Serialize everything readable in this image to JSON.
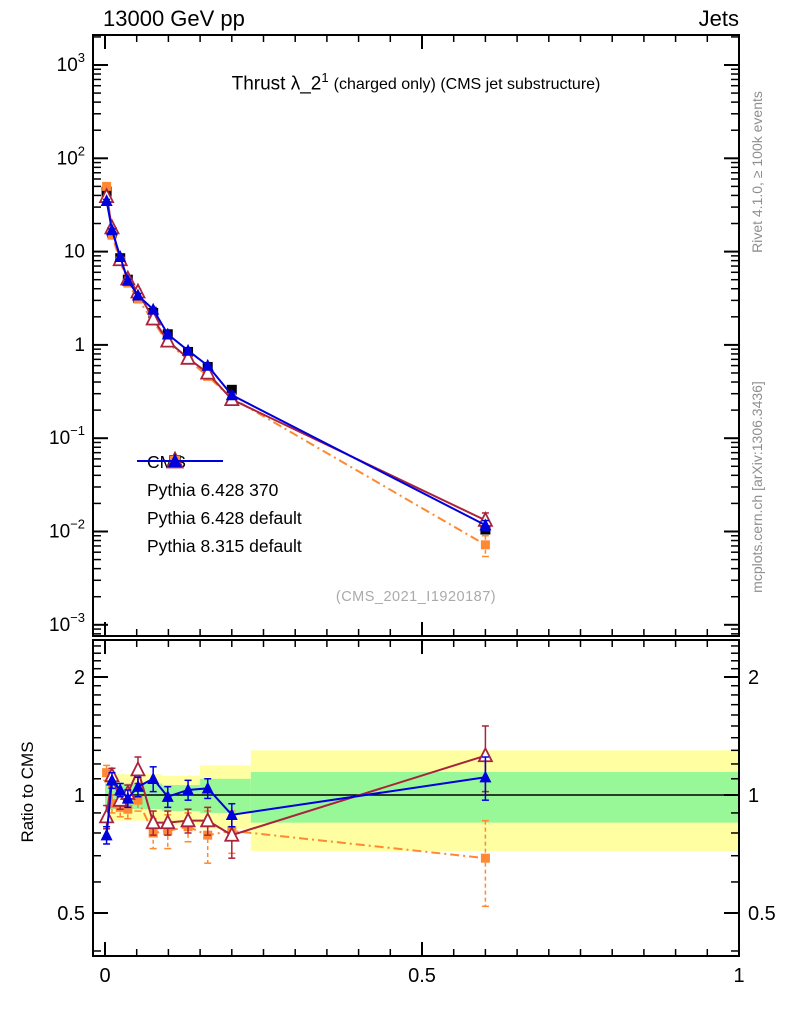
{
  "header": {
    "left": "13000 GeV pp",
    "right": "Jets"
  },
  "plot_title": {
    "main": "Thrust λ_2",
    "superscript": "1",
    "suffix": "(charged only) (CMS jet substructure)"
  },
  "watermark": "(CMS_2021_I1920187)",
  "side_notes": {
    "rivet": "Rivet 4.1.0, ≥ 100k events",
    "mcplots": "mcplots.cern.ch [arXiv:1306.3436]"
  },
  "ratio_axis_label": "Ratio to CMS",
  "legend": {
    "items": [
      {
        "label": "CMS"
      },
      {
        "label": "Pythia 6.428 370"
      },
      {
        "label": "Pythia 6.428 default"
      },
      {
        "label": "Pythia 8.315 default"
      }
    ]
  },
  "colors": {
    "cms": "#000000",
    "pythia6_370": "#aa233c",
    "pythia6_default": "#ff8833",
    "pythia8_default": "#0000dd",
    "band_yellow": "#ffffa1",
    "band_green": "#98f898",
    "gray_text": "#8e8e8e",
    "watermark_text": "#aaaaaa"
  },
  "chart_data": [
    {
      "type": "line",
      "panel": "main",
      "title": "Thrust λ_2^1 (charged only) (CMS jet substructure)",
      "xlabel": "",
      "ylabel": "",
      "xlim": [
        0,
        1
      ],
      "ylim": [
        0.00076,
        2090
      ],
      "yscale": "log",
      "grid": false,
      "legend_position": "center-left",
      "yaxis_tick_labels": [
        "10^3",
        "10^2",
        "10",
        "1",
        "10^-1",
        "10^-2",
        "10^-3"
      ],
      "yaxis_ticks": [
        1000,
        100,
        10,
        1,
        0.1,
        0.01,
        0.001
      ],
      "x": [
        0.0025,
        0.011,
        0.024,
        0.036,
        0.052,
        0.076,
        0.099,
        0.131,
        0.162,
        0.2,
        0.6
      ],
      "series": [
        {
          "name": "CMS",
          "color": "#000000",
          "marker": "square",
          "fill": "filled",
          "line": "none",
          "values": [
            44,
            16,
            8.5,
            5.0,
            3.2,
            2.2,
            1.3,
            0.84,
            0.58,
            0.33,
            0.0105
          ],
          "yerr": [
            1.5,
            0.5,
            0.3,
            0.15,
            0.1,
            0.08,
            0.05,
            0.03,
            0.02,
            0.015,
            0.001
          ]
        },
        {
          "name": "Pythia 6.428 370",
          "color": "#aa233c",
          "marker": "triangle",
          "fill": "open",
          "line": "solid",
          "values": [
            39,
            18,
            8.2,
            5.1,
            3.7,
            1.9,
            1.1,
            0.72,
            0.5,
            0.26,
            0.0132
          ],
          "yerr": [
            1.5,
            0.6,
            0.3,
            0.2,
            0.25,
            0.1,
            0.06,
            0.04,
            0.03,
            0.03,
            0.0026
          ]
        },
        {
          "name": "Pythia 6.428 default",
          "color": "#ff8833",
          "marker": "square",
          "fill": "filled",
          "line": "dashdot",
          "values": [
            50,
            15,
            7.9,
            4.6,
            3.1,
            1.8,
            1.05,
            0.7,
            0.46,
            0.27,
            0.0072
          ],
          "yerr": [
            1.5,
            0.5,
            0.3,
            0.2,
            0.15,
            0.1,
            0.07,
            0.04,
            0.03,
            0.025,
            0.0018
          ]
        },
        {
          "name": "Pythia 8.315 default",
          "color": "#0000dd",
          "marker": "triangle",
          "fill": "filled",
          "line": "solid",
          "values": [
            35,
            17,
            8.8,
            4.9,
            3.4,
            2.4,
            1.3,
            0.87,
            0.6,
            0.29,
            0.0117
          ],
          "yerr": [
            1.2,
            0.5,
            0.3,
            0.15,
            0.15,
            0.12,
            0.06,
            0.04,
            0.03,
            0.02,
            0.0014
          ]
        }
      ]
    },
    {
      "type": "line",
      "panel": "ratio",
      "ylabel": "Ratio to CMS",
      "xlim": [
        0,
        1
      ],
      "ylim": [
        0.389,
        2.49
      ],
      "yscale": "log",
      "reference_line": 1,
      "xaxis_tick_labels": [
        "0",
        "0.5",
        "1"
      ],
      "xaxis_ticks": [
        0,
        0.5,
        1
      ],
      "yaxis_tick_labels": [
        "2",
        "1",
        "0.5"
      ],
      "yaxis_ticks": [
        2,
        1,
        0.5
      ],
      "bands": {
        "yellow": {
          "color": "#ffffa1",
          "segments": [
            [
              0.0,
              0.09,
              0.86,
              1.13
            ],
            [
              0.09,
              0.15,
              0.84,
              1.12
            ],
            [
              0.15,
              0.23,
              0.82,
              1.19
            ],
            [
              0.23,
              1.0,
              0.72,
              1.3
            ]
          ]
        },
        "green": {
          "color": "#98f898",
          "segments": [
            [
              0.0,
              0.09,
              0.92,
              1.07
            ],
            [
              0.09,
              0.15,
              0.91,
              1.06
            ],
            [
              0.15,
              0.23,
              0.9,
              1.1
            ],
            [
              0.23,
              1.0,
              0.85,
              1.145
            ]
          ]
        }
      },
      "x": [
        0.0025,
        0.011,
        0.024,
        0.036,
        0.052,
        0.076,
        0.099,
        0.131,
        0.162,
        0.2,
        0.6
      ],
      "series": [
        {
          "name": "Pythia 6.428 370",
          "color": "#aa233c",
          "marker": "triangle",
          "fill": "open",
          "line": "solid",
          "values": [
            0.88,
            1.12,
            0.97,
            1.01,
            1.16,
            0.85,
            0.85,
            0.86,
            0.86,
            0.79,
            1.26
          ],
          "yerr": [
            0.06,
            0.05,
            0.05,
            0.05,
            0.09,
            0.06,
            0.06,
            0.06,
            0.07,
            0.1,
            0.24
          ]
        },
        {
          "name": "Pythia 6.428 default",
          "color": "#ff8833",
          "marker": "square",
          "fill": "filled",
          "line": "dashdot",
          "values": [
            1.14,
            0.95,
            0.93,
            0.92,
            0.97,
            0.8,
            0.81,
            0.83,
            0.79,
            0.81,
            0.69
          ],
          "yerr": [
            0.05,
            0.05,
            0.05,
            0.05,
            0.06,
            0.07,
            0.08,
            0.07,
            0.12,
            0.1,
            0.17
          ]
        },
        {
          "name": "Pythia 8.315 default",
          "color": "#0000dd",
          "marker": "triangle",
          "fill": "filled",
          "line": "solid",
          "values": [
            0.79,
            1.09,
            1.03,
            0.98,
            1.05,
            1.1,
            0.99,
            1.03,
            1.04,
            0.89,
            1.11
          ],
          "yerr": [
            0.04,
            0.05,
            0.04,
            0.05,
            0.06,
            0.08,
            0.06,
            0.06,
            0.06,
            0.06,
            0.14
          ]
        }
      ]
    }
  ]
}
